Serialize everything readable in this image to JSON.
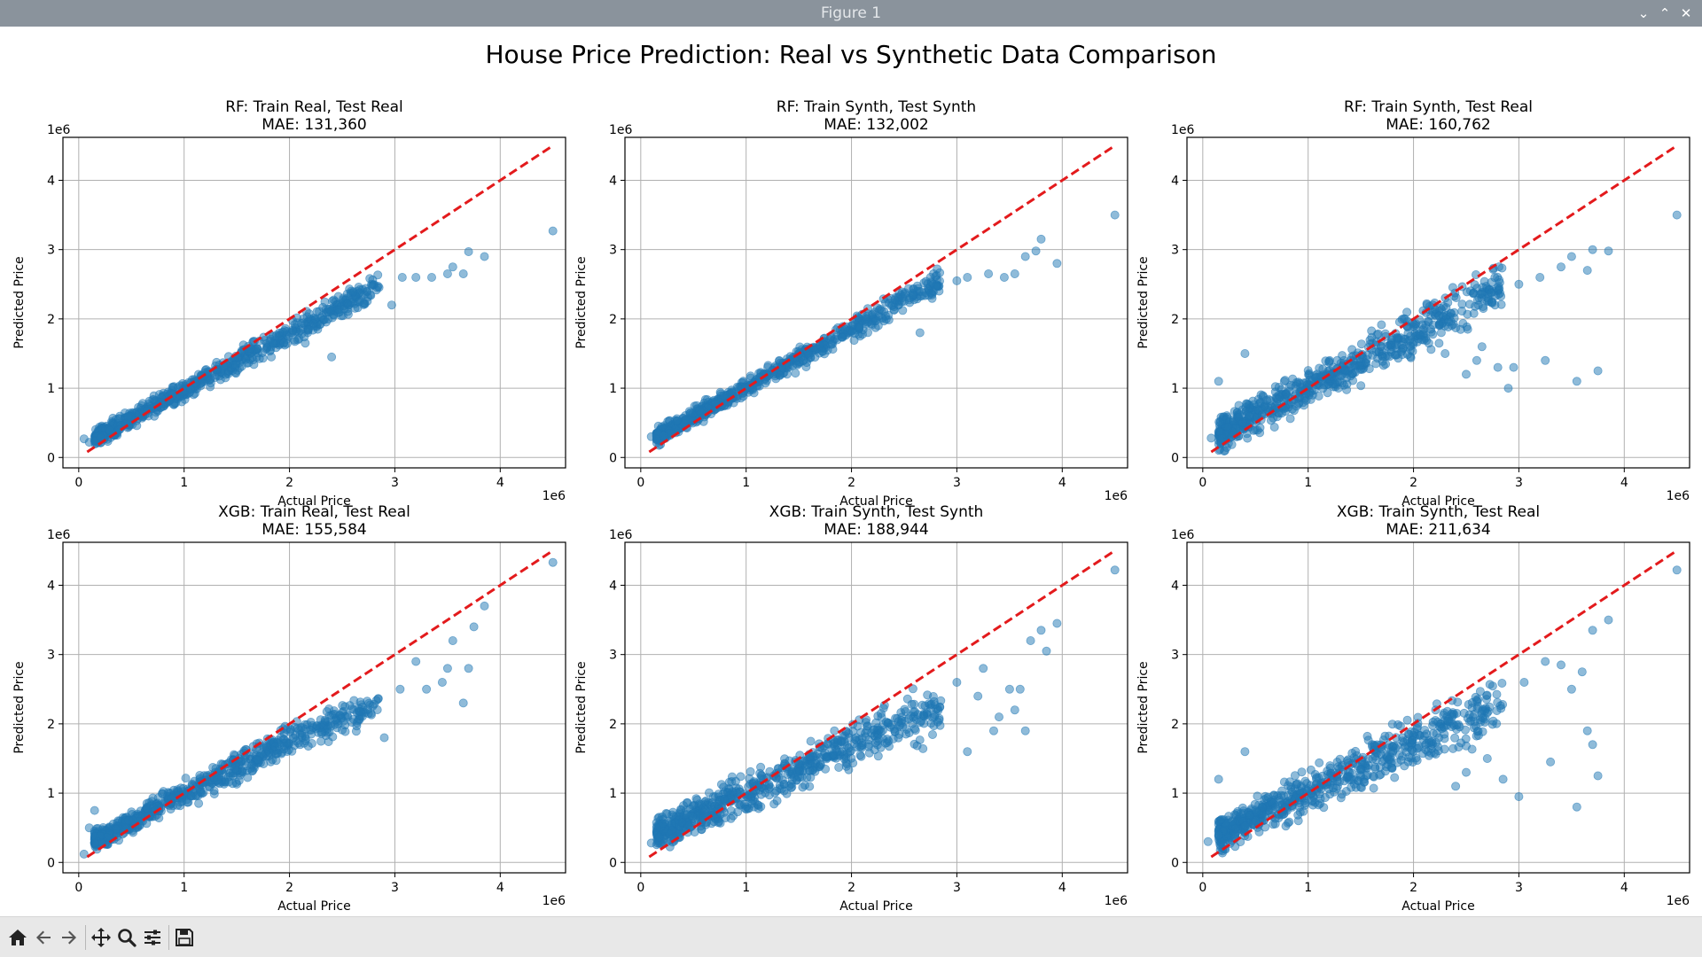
{
  "window": {
    "title": "Figure 1"
  },
  "toolbar": {
    "icons": [
      "home-icon",
      "back-arrow-icon",
      "forward-arrow-icon",
      "pan-icon",
      "zoom-icon",
      "configure-subplots-icon",
      "save-icon"
    ]
  },
  "colors": {
    "points": "#1f77b4",
    "ideal_line": "#e31a1c",
    "grid": "#b0b0b0"
  },
  "chart_data": {
    "suptitle": "House Price Prediction: Real vs Synthetic Data Comparison",
    "panels": [
      {
        "type": "scatter",
        "title": "RF: Train Real, Test Real",
        "subtitle": "MAE: 131,360",
        "xlabel": "Actual Price",
        "ylabel": "Predicted Price",
        "x_offset_text": "1e6",
        "y_offset_text": "1e6",
        "xlim": [
          -0.15,
          4.62
        ],
        "ylim": [
          -0.15,
          4.62
        ],
        "xticks": [
          0,
          1,
          2,
          3,
          4
        ],
        "yticks": [
          0,
          1,
          2,
          3,
          4
        ],
        "grid": true,
        "ideal_line": {
          "from": [
            0.08,
            0.08
          ],
          "to": [
            4.5,
            4.5
          ]
        },
        "slope": 0.82,
        "intercept": 0.15,
        "spread": 0.13,
        "tail_drop": 0,
        "outliers": [
          [
            0.05,
            0.27
          ],
          [
            0.1,
            0.22
          ],
          [
            2.15,
            1.65
          ],
          [
            2.4,
            1.45
          ],
          [
            2.97,
            2.2
          ],
          [
            3.07,
            2.6
          ],
          [
            3.2,
            2.6
          ],
          [
            3.35,
            2.6
          ],
          [
            3.5,
            2.65
          ],
          [
            3.55,
            2.75
          ],
          [
            3.65,
            2.65
          ],
          [
            3.7,
            2.97
          ],
          [
            3.85,
            2.9
          ],
          [
            4.5,
            3.27
          ]
        ]
      },
      {
        "type": "scatter",
        "title": "RF: Train Synth, Test Synth",
        "subtitle": "MAE: 132,002",
        "xlabel": "Actual Price",
        "ylabel": "Predicted Price",
        "x_offset_text": "1e6",
        "y_offset_text": "1e6",
        "xlim": [
          -0.15,
          4.62
        ],
        "ylim": [
          -0.15,
          4.62
        ],
        "xticks": [
          0,
          1,
          2,
          3,
          4
        ],
        "yticks": [
          0,
          1,
          2,
          3,
          4
        ],
        "grid": true,
        "ideal_line": {
          "from": [
            0.08,
            0.08
          ],
          "to": [
            4.5,
            4.5
          ]
        },
        "slope": 0.84,
        "intercept": 0.17,
        "spread": 0.12,
        "tail_drop": 0,
        "outliers": [
          [
            0.1,
            0.3
          ],
          [
            2.65,
            1.8
          ],
          [
            3.0,
            2.55
          ],
          [
            3.1,
            2.6
          ],
          [
            3.3,
            2.65
          ],
          [
            3.45,
            2.6
          ],
          [
            3.55,
            2.65
          ],
          [
            3.65,
            2.9
          ],
          [
            3.75,
            2.98
          ],
          [
            3.8,
            3.15
          ],
          [
            3.95,
            2.8
          ],
          [
            4.5,
            3.5
          ]
        ]
      },
      {
        "type": "scatter",
        "title": "RF: Train Synth, Test Real",
        "subtitle": "MAE: 160,762",
        "xlabel": "Actual Price",
        "ylabel": "Predicted Price",
        "x_offset_text": "1e6",
        "y_offset_text": "1e6",
        "xlim": [
          -0.15,
          4.62
        ],
        "ylim": [
          -0.15,
          4.62
        ],
        "xticks": [
          0,
          1,
          2,
          3,
          4
        ],
        "yticks": [
          0,
          1,
          2,
          3,
          4
        ],
        "grid": true,
        "ideal_line": {
          "from": [
            0.08,
            0.08
          ],
          "to": [
            4.5,
            4.5
          ]
        },
        "slope": 0.8,
        "intercept": 0.2,
        "spread": 0.24,
        "tail_drop": 0,
        "outliers": [
          [
            0.08,
            0.28
          ],
          [
            0.15,
            1.1
          ],
          [
            0.4,
            1.5
          ],
          [
            2.3,
            1.5
          ],
          [
            2.5,
            1.2
          ],
          [
            2.6,
            1.4
          ],
          [
            2.65,
            1.6
          ],
          [
            2.8,
            1.3
          ],
          [
            2.9,
            1.0
          ],
          [
            2.95,
            1.3
          ],
          [
            3.0,
            2.5
          ],
          [
            3.25,
            1.4
          ],
          [
            3.2,
            2.6
          ],
          [
            3.4,
            2.75
          ],
          [
            3.5,
            2.9
          ],
          [
            3.55,
            1.1
          ],
          [
            3.65,
            2.7
          ],
          [
            3.75,
            1.25
          ],
          [
            3.7,
            3.0
          ],
          [
            3.85,
            2.98
          ],
          [
            4.5,
            3.5
          ]
        ]
      },
      {
        "type": "scatter",
        "title": "XGB: Train Real, Test Real",
        "subtitle": "MAE: 155,584",
        "xlabel": "Actual Price",
        "ylabel": "Predicted Price",
        "x_offset_text": "1e6",
        "y_offset_text": "1e6",
        "xlim": [
          -0.15,
          4.62
        ],
        "ylim": [
          -0.15,
          4.62
        ],
        "xticks": [
          0,
          1,
          2,
          3,
          4
        ],
        "yticks": [
          0,
          1,
          2,
          3,
          4
        ],
        "grid": true,
        "ideal_line": {
          "from": [
            0.08,
            0.08
          ],
          "to": [
            4.5,
            4.5
          ]
        },
        "slope": 0.78,
        "intercept": 0.2,
        "spread": 0.16,
        "tail_drop": 0.08,
        "outliers": [
          [
            0.05,
            0.12
          ],
          [
            0.1,
            0.5
          ],
          [
            0.15,
            0.75
          ],
          [
            2.9,
            1.8
          ],
          [
            3.05,
            2.5
          ],
          [
            3.2,
            2.9
          ],
          [
            3.3,
            2.5
          ],
          [
            3.45,
            2.6
          ],
          [
            3.5,
            2.8
          ],
          [
            3.55,
            3.2
          ],
          [
            3.65,
            2.3
          ],
          [
            3.7,
            2.8
          ],
          [
            3.75,
            3.4
          ],
          [
            3.85,
            3.7
          ],
          [
            4.5,
            4.33
          ]
        ]
      },
      {
        "type": "scatter",
        "title": "XGB: Train Synth, Test Synth",
        "subtitle": "MAE: 188,944",
        "xlabel": "Actual Price",
        "ylabel": "Predicted Price",
        "x_offset_text": "1e6",
        "y_offset_text": "1e6",
        "xlim": [
          -0.15,
          4.62
        ],
        "ylim": [
          -0.15,
          4.62
        ],
        "xticks": [
          0,
          1,
          2,
          3,
          4
        ],
        "yticks": [
          0,
          1,
          2,
          3,
          4
        ],
        "grid": true,
        "ideal_line": {
          "from": [
            0.08,
            0.08
          ],
          "to": [
            4.5,
            4.5
          ]
        },
        "slope": 0.7,
        "intercept": 0.3,
        "spread": 0.24,
        "tail_drop": 0.05,
        "outliers": [
          [
            0.1,
            0.28
          ],
          [
            0.15,
            0.5
          ],
          [
            3.0,
            2.6
          ],
          [
            3.1,
            1.6
          ],
          [
            3.2,
            2.4
          ],
          [
            3.25,
            2.8
          ],
          [
            3.35,
            1.9
          ],
          [
            3.4,
            2.1
          ],
          [
            3.5,
            2.5
          ],
          [
            3.55,
            2.2
          ],
          [
            3.6,
            2.5
          ],
          [
            3.65,
            1.9
          ],
          [
            3.7,
            3.2
          ],
          [
            3.8,
            3.35
          ],
          [
            3.85,
            3.05
          ],
          [
            3.95,
            3.45
          ],
          [
            4.5,
            4.22
          ]
        ]
      },
      {
        "type": "scatter",
        "title": "XGB: Train Synth, Test Real",
        "subtitle": "MAE: 211,634",
        "xlabel": "Actual Price",
        "ylabel": "Predicted Price",
        "x_offset_text": "1e6",
        "y_offset_text": "1e6",
        "xlim": [
          -0.15,
          4.62
        ],
        "ylim": [
          -0.15,
          4.62
        ],
        "xticks": [
          0,
          1,
          2,
          3,
          4
        ],
        "yticks": [
          0,
          1,
          2,
          3,
          4
        ],
        "grid": true,
        "ideal_line": {
          "from": [
            0.08,
            0.08
          ],
          "to": [
            4.5,
            4.5
          ]
        },
        "slope": 0.72,
        "intercept": 0.3,
        "spread": 0.26,
        "tail_drop": 0.05,
        "outliers": [
          [
            0.05,
            0.3
          ],
          [
            0.15,
            1.2
          ],
          [
            0.4,
            1.6
          ],
          [
            2.4,
            1.1
          ],
          [
            2.5,
            1.3
          ],
          [
            2.7,
            1.5
          ],
          [
            2.85,
            1.2
          ],
          [
            3.0,
            0.95
          ],
          [
            3.05,
            2.6
          ],
          [
            3.25,
            2.9
          ],
          [
            3.3,
            1.45
          ],
          [
            3.4,
            2.85
          ],
          [
            3.5,
            2.5
          ],
          [
            3.55,
            0.8
          ],
          [
            3.6,
            2.75
          ],
          [
            3.65,
            1.9
          ],
          [
            3.7,
            1.7
          ],
          [
            3.75,
            1.25
          ],
          [
            3.7,
            3.35
          ],
          [
            3.85,
            3.5
          ],
          [
            4.5,
            4.22
          ]
        ]
      }
    ]
  }
}
